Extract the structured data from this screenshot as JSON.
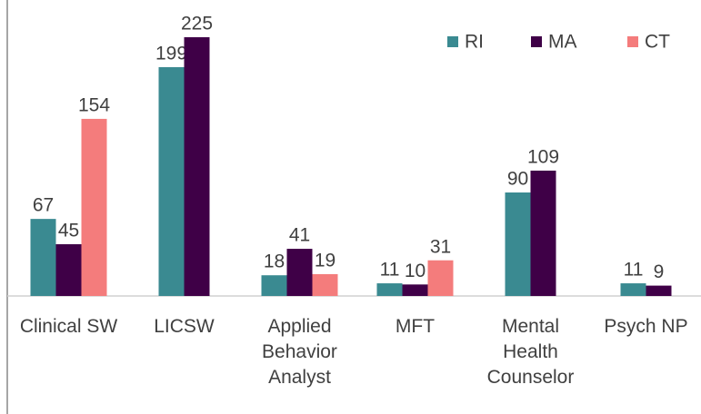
{
  "chart_data": {
    "type": "bar",
    "categories": [
      "Clinical SW",
      "LICSW",
      "Applied Behavior Analyst",
      "MFT",
      "Mental Health Counselor",
      "Psych NP"
    ],
    "series": [
      {
        "name": "RI",
        "color": "#3a8a91",
        "values": [
          67,
          199,
          18,
          11,
          90,
          11
        ]
      },
      {
        "name": "MA",
        "color": "#3f0047",
        "values": [
          45,
          225,
          41,
          10,
          109,
          9
        ]
      },
      {
        "name": "CT",
        "color": "#f47c7c",
        "values": [
          154,
          null,
          19,
          31,
          null,
          null
        ]
      }
    ],
    "ylim": [
      0,
      225
    ],
    "legend": "top-right"
  }
}
